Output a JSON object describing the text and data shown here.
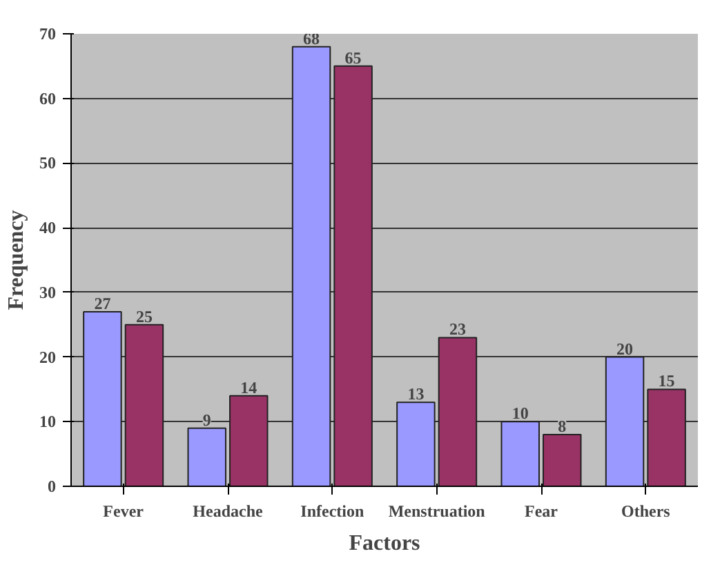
{
  "chart_data": {
    "type": "bar",
    "xlabel": "Factors",
    "ylabel": "Frequency",
    "categories": [
      "Fever",
      "Headache",
      "Infection",
      "Menstruation",
      "Fear",
      "Others"
    ],
    "series": [
      {
        "color": "#9999ff",
        "values": [
          27,
          9,
          68,
          13,
          10,
          20
        ]
      },
      {
        "color": "#993366",
        "values": [
          25,
          14,
          65,
          23,
          8,
          15
        ]
      }
    ],
    "ylim": [
      0,
      70
    ],
    "yticks": [
      0,
      10,
      20,
      30,
      40,
      50,
      60,
      70
    ],
    "grid": "y",
    "data_labels": true
  }
}
